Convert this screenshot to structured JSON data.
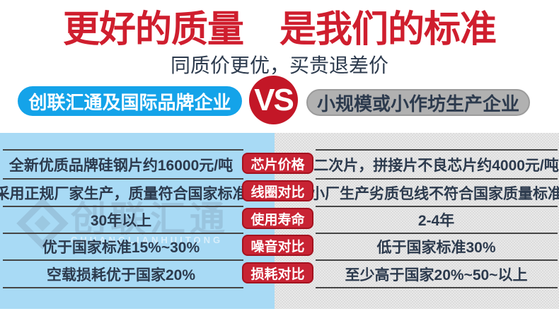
{
  "header": {
    "title": "更好的质量　是我们的标准",
    "subtitle": "同质价更优，买贵退差价"
  },
  "versus": {
    "left_company": "创联汇通及国际品牌企业",
    "vs": "VS",
    "right_company": "小规模或小作坊生产企业"
  },
  "watermark": {
    "brand": "创联汇通",
    "brand_latin": "CHUANGLIANHUITONG"
  },
  "table": {
    "rows": [
      {
        "left": "全新优质品牌硅钢片约16000元/吨",
        "badge": "芯片价格",
        "right": "二次片，拼接片不良芯片约4000元/吨"
      },
      {
        "left": "采用正规厂家生产，质量符合国家标准",
        "badge": "线圈对比",
        "right": "小厂生产劣质包线不符合国家质量标准"
      },
      {
        "left": "30年以上",
        "badge": "使用寿命",
        "right": "2-4年"
      },
      {
        "left": "优于国家标准15%~30%",
        "badge": "噪音对比",
        "right": "低于国家标准30%"
      },
      {
        "left": "空载损耗优于国家20%",
        "badge": "损耗对比",
        "right": "至少高于国家20%~50~以上"
      }
    ]
  },
  "colors": {
    "title_red": "#cf1e2e",
    "vs_circle_red": "#c31727",
    "badge_red": "#c82333",
    "brand_blue": "#14a3e9",
    "left_column_blue": "#a8daf5",
    "right_column_gray": "#e4e4e4",
    "competitor_pill_gray": "#b1b1b1",
    "text_dark": "#2c3a4d"
  }
}
